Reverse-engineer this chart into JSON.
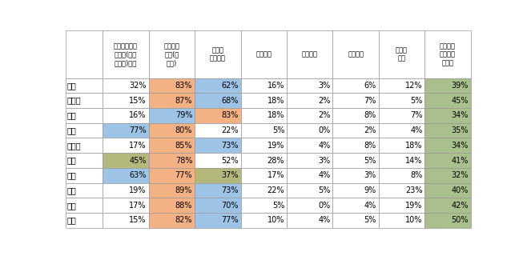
{
  "col_headers": [
    "メガバンク・\nりそな(埼玉\nりそな)銀行",
    "ゆうちょ\n銀行(郵\n便局)",
    "地銀・\n第二地銀",
    "信用金庫",
    "信用組合",
    "労働金庫",
    "農協・\n漁協",
    "インター\nネット専\n業銀行"
  ],
  "row_headers": [
    "全国",
    "北海道",
    "東北",
    "関東",
    "北信越",
    "東海",
    "近畿",
    "中国",
    "四国",
    "九州"
  ],
  "data": [
    [
      32,
      83,
      62,
      16,
      3,
      6,
      12,
      39
    ],
    [
      15,
      87,
      68,
      18,
      2,
      7,
      5,
      45
    ],
    [
      16,
      79,
      83,
      18,
      2,
      8,
      7,
      34
    ],
    [
      77,
      80,
      22,
      5,
      0,
      2,
      4,
      35
    ],
    [
      17,
      85,
      73,
      19,
      4,
      8,
      18,
      34
    ],
    [
      45,
      78,
      52,
      28,
      3,
      5,
      14,
      41
    ],
    [
      63,
      77,
      37,
      17,
      4,
      3,
      8,
      32
    ],
    [
      19,
      89,
      73,
      22,
      5,
      9,
      23,
      40
    ],
    [
      17,
      88,
      70,
      5,
      0,
      4,
      19,
      42
    ],
    [
      15,
      82,
      77,
      10,
      4,
      5,
      10,
      50
    ]
  ],
  "colors": {
    "orange": "#f4b183",
    "blue": "#9dc3e6",
    "green": "#a9c08c",
    "olive": "#b5b87d",
    "white": "#ffffff"
  },
  "highlight_map": [
    [
      null,
      "orange",
      "blue",
      null,
      null,
      null,
      null,
      "green"
    ],
    [
      null,
      "orange",
      "blue",
      null,
      null,
      null,
      null,
      "green"
    ],
    [
      null,
      "blue",
      "orange",
      null,
      null,
      null,
      null,
      "green"
    ],
    [
      "blue",
      "orange",
      null,
      null,
      null,
      null,
      null,
      "green"
    ],
    [
      null,
      "orange",
      "blue",
      null,
      null,
      null,
      null,
      "green"
    ],
    [
      "olive",
      "orange",
      null,
      null,
      null,
      null,
      null,
      "green"
    ],
    [
      "blue",
      "orange",
      "olive",
      null,
      null,
      null,
      null,
      "green"
    ],
    [
      null,
      "orange",
      "blue",
      null,
      null,
      null,
      null,
      "green"
    ],
    [
      null,
      "orange",
      "blue",
      null,
      null,
      null,
      null,
      "green"
    ],
    [
      null,
      "orange",
      "blue",
      null,
      null,
      null,
      null,
      "green"
    ]
  ],
  "figsize": [
    6.53,
    3.2
  ],
  "dpi": 100
}
